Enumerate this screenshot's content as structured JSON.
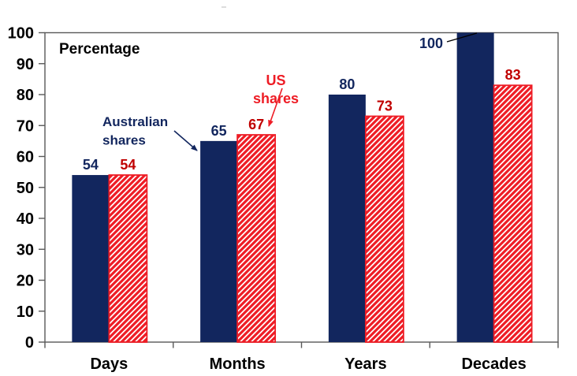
{
  "page": {
    "background": "#FFFFFF"
  },
  "chart_data": {
    "type": "bar",
    "title": "",
    "inner_label": "Percentage",
    "xlabel": "",
    "ylabel": "Percentage",
    "categories": [
      "Days",
      "Months",
      "Years",
      "Decades"
    ],
    "series": [
      {
        "name": "Australian shares",
        "values": [
          54,
          65,
          80,
          100
        ],
        "style": "solid",
        "color": "#12265E",
        "value_label_color": "#12265E"
      },
      {
        "name": "US shares",
        "values": [
          54,
          67,
          73,
          83
        ],
        "style": "hatched",
        "color": "#EE1C25",
        "value_label_color": "#C00000"
      }
    ],
    "ylim": [
      0,
      100
    ],
    "ytick_step": 10,
    "ytick_labels": [
      "0",
      "10",
      "20",
      "30",
      "40",
      "50",
      "60",
      "70",
      "80",
      "90",
      "100"
    ],
    "grid": false,
    "legend_position": "in-plot-annotations",
    "axis_color": "#595959",
    "text_color": "#000000",
    "annotations": [
      {
        "id": "australian-shares-label",
        "lines": [
          "Australian",
          "shares"
        ],
        "color": "#12265E",
        "x": 130,
        "y": 160,
        "line_height": 23.5,
        "anchor": "start",
        "font_size": 17,
        "arrow": {
          "from": [
            221,
            166
          ],
          "to": [
            250,
            191
          ]
        }
      },
      {
        "id": "us-shares-label",
        "lines": [
          "US",
          "shares"
        ],
        "color": "#EE1C25",
        "x": 350,
        "y": 108,
        "line_height": 23,
        "anchor": "middle",
        "font_size": 18,
        "arrow": {
          "from": [
            358,
            112
          ],
          "to": [
            341,
            160
          ]
        }
      }
    ],
    "value_label_overrides": [
      {
        "series": 0,
        "index": 3,
        "x": 547,
        "y": 61,
        "leader": [
          [
            567,
            53
          ],
          [
            605,
            42
          ]
        ],
        "leader_color": "#000000"
      }
    ]
  }
}
